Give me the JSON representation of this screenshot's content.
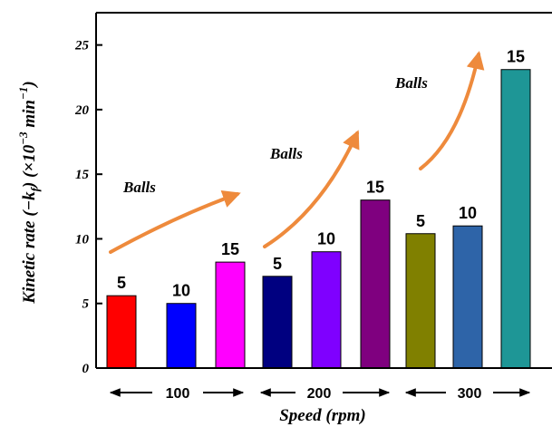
{
  "chart_data": {
    "type": "bar",
    "title": "",
    "xlabel": "Speed (rpm)",
    "ylabel": "Kinetic rate (−k",
    "ylabel_sub": "f",
    "ylabel_unit_prefix": ") (×10",
    "ylabel_exp1": "−3",
    "ylabel_unit_mid": " min",
    "ylabel_exp2": "−1",
    "ylabel_unit_suffix": ")",
    "ylim": [
      0,
      27.5
    ],
    "yticks": [
      "0",
      "5",
      "10",
      "15",
      "20",
      "25"
    ],
    "groups": [
      {
        "label": "100",
        "bars": [
          {
            "name": "5",
            "value": 5.6,
            "color": "#ff0000"
          },
          {
            "name": "10",
            "value": 5.0,
            "color": "#0000ff"
          },
          {
            "name": "15",
            "value": 8.2,
            "color": "#ff00ff"
          }
        ]
      },
      {
        "label": "200",
        "bars": [
          {
            "name": "5",
            "value": 7.1,
            "color": "#000080"
          },
          {
            "name": "10",
            "value": 9.0,
            "color": "#7f00ff"
          },
          {
            "name": "15",
            "value": 13.0,
            "color": "#7f007f"
          }
        ]
      },
      {
        "label": "300",
        "bars": [
          {
            "name": "5",
            "value": 10.4,
            "color": "#808000"
          },
          {
            "name": "10",
            "value": 11.0,
            "color": "#2e64a8"
          },
          {
            "name": "15",
            "value": 23.1,
            "color": "#1e9696"
          }
        ]
      }
    ],
    "annotations": [
      "Balls",
      "Balls",
      "Balls"
    ],
    "arrow_color": "#ee8a3c"
  }
}
